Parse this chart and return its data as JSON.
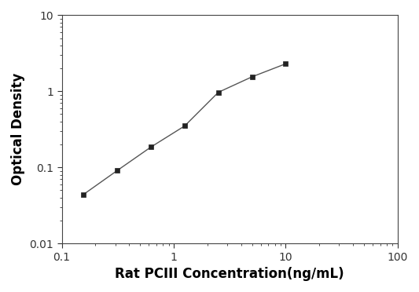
{
  "x": [
    0.156,
    0.313,
    0.625,
    1.25,
    2.5,
    5.0,
    10.0
  ],
  "y": [
    0.044,
    0.091,
    0.185,
    0.35,
    0.97,
    1.55,
    2.3
  ],
  "xlim": [
    0.1,
    100
  ],
  "ylim": [
    0.01,
    10
  ],
  "xlabel": "Rat PCIII Concentration(ng/mL)",
  "ylabel": "Optical Density",
  "line_color": "#555555",
  "marker": "s",
  "marker_color": "#222222",
  "marker_size": 5,
  "linewidth": 1.0,
  "background_color": "#ffffff",
  "xlabel_fontsize": 12,
  "ylabel_fontsize": 12,
  "tick_fontsize": 10,
  "xtick_labels": [
    "0.1",
    "1",
    "10",
    "100"
  ],
  "xtick_vals": [
    0.1,
    1,
    10,
    100
  ],
  "ytick_labels": [
    "0.01",
    "0.1",
    "1",
    "10"
  ],
  "ytick_vals": [
    0.01,
    0.1,
    1,
    10
  ]
}
